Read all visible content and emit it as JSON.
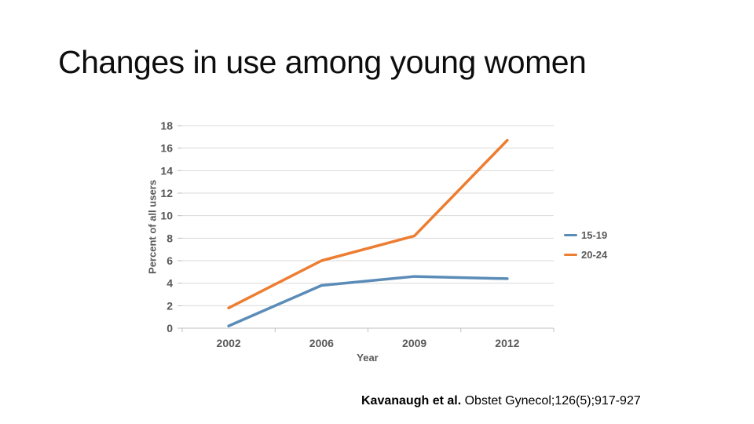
{
  "slide": {
    "title": "Changes in use among young women",
    "citation": {
      "authors": "Kavanaugh et al.",
      "journal": " Obstet Gynecol;126(5);917-927"
    }
  },
  "chart_data": {
    "type": "line",
    "categories": [
      "2002",
      "2006",
      "2009",
      "2012"
    ],
    "series": [
      {
        "name": "15-19",
        "color": "#5B8CB8",
        "values": [
          0.2,
          3.8,
          4.6,
          4.4
        ]
      },
      {
        "name": "20-24",
        "color": "#ED7D31",
        "values": [
          1.8,
          6.0,
          8.2,
          16.7
        ]
      }
    ],
    "xlabel": "Year",
    "ylabel": "Percent of all users",
    "ylim": [
      0,
      18
    ],
    "yticks": [
      0,
      2,
      4,
      6,
      8,
      10,
      12,
      14,
      16,
      18
    ],
    "grid": true,
    "legend_position": "right",
    "line_width": 3.5,
    "axis_text_color": "#595959",
    "gridline_color": "#D9D9D9",
    "axis_line_color": "#BFBFBF"
  }
}
